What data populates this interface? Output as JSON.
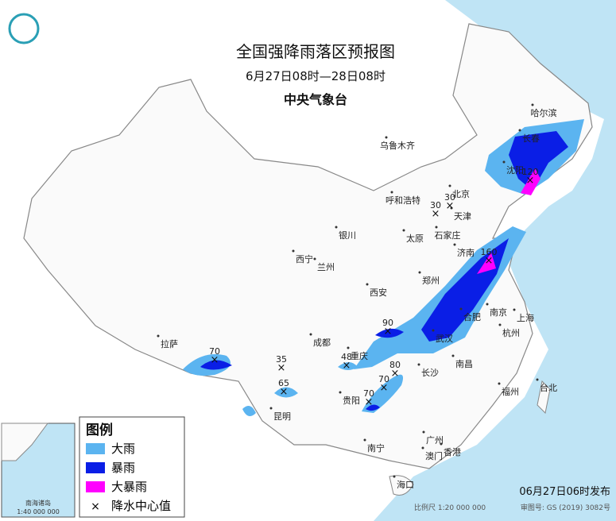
{
  "header": {
    "title": "全国强降雨落区预报图",
    "subtitle": "6月27日08时—28日08时",
    "issuer": "中央气象台"
  },
  "cities": [
    "乌鲁木齐",
    "哈尔滨",
    "长春",
    "沈阳",
    "呼和浩特",
    "北京",
    "天津",
    "银川",
    "太原",
    "石家庄",
    "济南",
    "西宁",
    "兰州",
    "郑州",
    "西安",
    "合肥",
    "南京",
    "上海",
    "武汉",
    "杭州",
    "成都",
    "拉萨",
    "重庆",
    "长沙",
    "南昌",
    "贵阳",
    "福州",
    "台北",
    "昆明",
    "南宁",
    "广州",
    "澳门",
    "香港",
    "海口"
  ],
  "rain_centers": [
    30,
    30,
    120,
    160,
    90,
    70,
    35,
    48,
    65,
    70,
    70,
    80
  ],
  "legend": {
    "title": "图例",
    "items": [
      "大雨",
      "暴雨",
      "大暴雨",
      "降水中心值"
    ]
  },
  "inset": {
    "label": "南海诸岛",
    "scale": "1:40 000 000"
  },
  "footer": {
    "issued": "06月27日06时发布",
    "scale": "比例尺 1:20 000 000",
    "approval": "审图号: GS (2019) 3082号"
  }
}
